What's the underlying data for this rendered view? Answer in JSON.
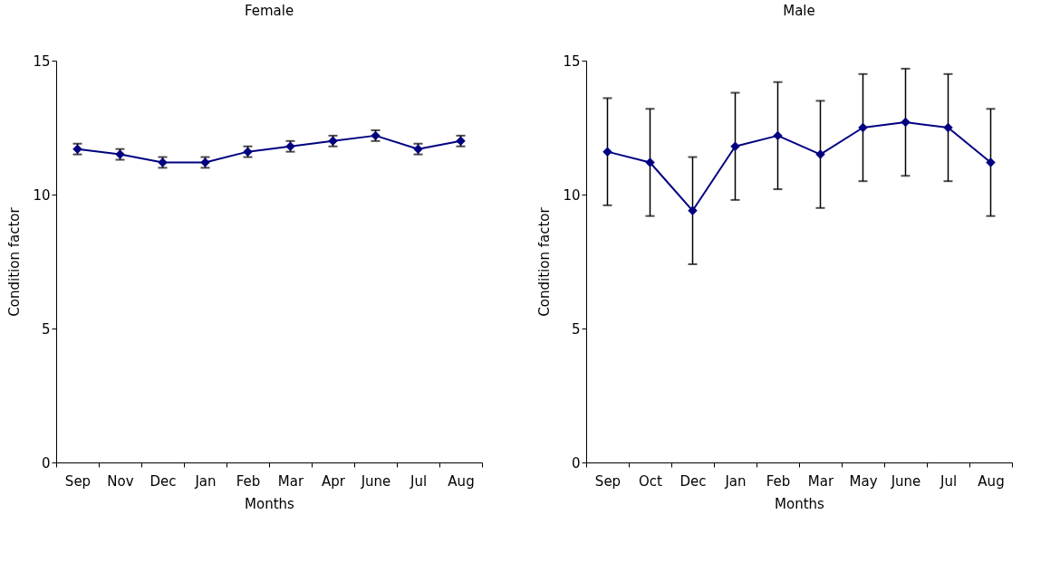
{
  "chart_data": [
    {
      "type": "line",
      "title": "Female",
      "xlabel": "Months",
      "ylabel": "Condition factor",
      "categories": [
        "Sep",
        "Nov",
        "Dec",
        "Jan",
        "Feb",
        "Mar",
        "Apr",
        "June",
        "Jul",
        "Aug"
      ],
      "series": [
        {
          "color": "#000080",
          "values": [
            11.7,
            11.5,
            11.2,
            11.2,
            11.6,
            11.8,
            12.0,
            12.2,
            11.7,
            12.0
          ],
          "errors": [
            0.2,
            0.2,
            0.2,
            0.2,
            0.2,
            0.2,
            0.2,
            0.2,
            0.2,
            0.2
          ]
        }
      ],
      "ylim": [
        0,
        15
      ],
      "yticks": [
        0,
        5,
        10,
        15
      ],
      "grid": false,
      "marker": "diamond",
      "line_style": "solid"
    },
    {
      "type": "line",
      "title": "Male",
      "xlabel": "Months",
      "ylabel": "Condition factor",
      "categories": [
        "Sep",
        "Oct",
        "Dec",
        "Jan",
        "Feb",
        "Mar",
        "May",
        "June",
        "Jul",
        "Aug"
      ],
      "series": [
        {
          "color": "#000080",
          "values": [
            11.6,
            11.2,
            9.4,
            11.8,
            12.2,
            11.5,
            12.5,
            12.7,
            12.5,
            11.2
          ],
          "errors": [
            2,
            2,
            2,
            2,
            2,
            2,
            2,
            2,
            2,
            2
          ]
        }
      ],
      "ylim": [
        0,
        15
      ],
      "yticks": [
        0,
        5,
        10,
        15
      ],
      "grid": false,
      "marker": "diamond",
      "line_style": "solid"
    }
  ]
}
